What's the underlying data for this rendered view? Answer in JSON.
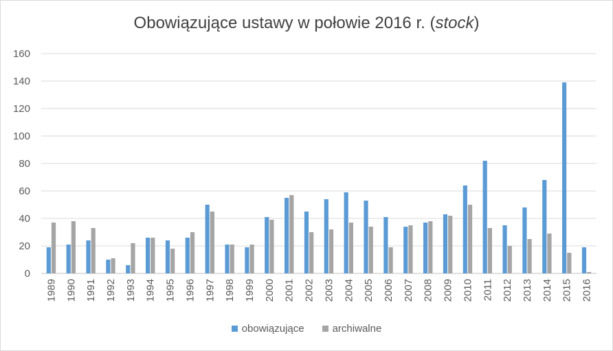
{
  "chart_data": {
    "type": "bar",
    "title_main": "Obowiązujące ustawy w połowie 2016 r. (",
    "title_em": "stock",
    "title_end": ")",
    "categories": [
      "1989",
      "1990",
      "1991",
      "1992",
      "1993",
      "1994",
      "1995",
      "1996",
      "1997",
      "1998",
      "1999",
      "2000",
      "2001",
      "2002",
      "2003",
      "2004",
      "2005",
      "2006",
      "2007",
      "2008",
      "2009",
      "2010",
      "2011",
      "2012",
      "2013",
      "2014",
      "2015",
      "2016"
    ],
    "series": [
      {
        "name": "obowiązujące",
        "color": "#5b9bd5",
        "values": [
          19,
          21,
          24,
          10,
          6,
          26,
          24,
          26,
          50,
          21,
          19,
          41,
          55,
          45,
          54,
          59,
          53,
          41,
          34,
          37,
          43,
          64,
          82,
          35,
          48,
          68,
          139,
          19
        ]
      },
      {
        "name": "archiwalne",
        "color": "#a5a5a5",
        "values": [
          37,
          38,
          33,
          11,
          22,
          26,
          18,
          30,
          45,
          21,
          21,
          39,
          57,
          30,
          32,
          37,
          34,
          19,
          35,
          38,
          42,
          50,
          33,
          20,
          25,
          29,
          15,
          1
        ]
      }
    ],
    "yticks": [
      0,
      20,
      40,
      60,
      80,
      100,
      120,
      140,
      160
    ],
    "ylim": [
      0,
      160
    ],
    "grid": true,
    "legend_position": "bottom"
  }
}
